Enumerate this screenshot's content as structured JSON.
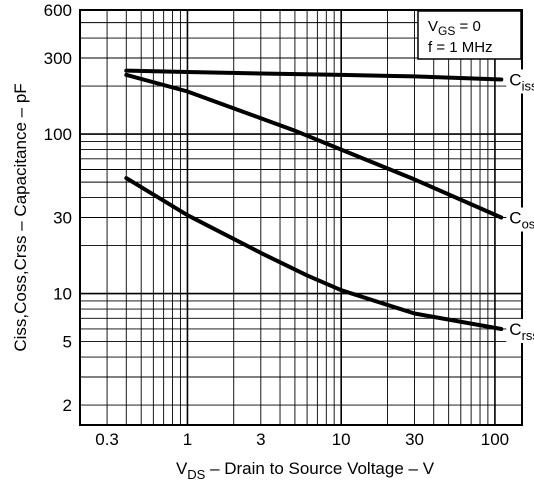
{
  "chart_data": {
    "type": "line",
    "x_scale": "log",
    "y_scale": "log",
    "xlim": [
      0.2,
      150
    ],
    "ylim": [
      1.5,
      600
    ],
    "grid": true,
    "xlabel": {
      "main": "V",
      "sub": "DS",
      "rest": " – Drain to Source Voltage – V"
    },
    "ylabel": "Ciss,Coss,Crss – Capacitance – pF",
    "x_ticks": [
      {
        "v": 0.3,
        "label": "0.3"
      },
      {
        "v": 1,
        "label": "1"
      },
      {
        "v": 3,
        "label": "3"
      },
      {
        "v": 10,
        "label": "10"
      },
      {
        "v": 30,
        "label": "30"
      },
      {
        "v": 100,
        "label": "100"
      }
    ],
    "y_ticks": [
      {
        "v": 2,
        "label": "2"
      },
      {
        "v": 5,
        "label": "5"
      },
      {
        "v": 10,
        "label": "10"
      },
      {
        "v": 30,
        "label": "30"
      },
      {
        "v": 100,
        "label": "100"
      },
      {
        "v": 300,
        "label": "300"
      },
      {
        "v": 600,
        "label": "600"
      }
    ],
    "conditions": {
      "line1_main": "V",
      "line1_sub": "GS",
      "line1_rest": " = 0",
      "line2": "f = 1 MHz"
    },
    "series": [
      {
        "name": "iss",
        "label_main": "C",
        "label_sub": "iss",
        "x": [
          0.4,
          1,
          3,
          10,
          30,
          110
        ],
        "y": [
          250,
          245,
          240,
          235,
          230,
          220
        ]
      },
      {
        "name": "oss",
        "label_main": "C",
        "label_sub": "oss",
        "x": [
          0.4,
          1,
          2,
          5,
          10,
          30,
          110
        ],
        "y": [
          235,
          185,
          145,
          105,
          80,
          52,
          30
        ]
      },
      {
        "name": "rss",
        "label_main": "C",
        "label_sub": "rss",
        "x": [
          0.4,
          1,
          3,
          6,
          10,
          30,
          110
        ],
        "y": [
          53,
          31,
          18,
          13,
          10.5,
          7.5,
          6
        ]
      }
    ]
  }
}
